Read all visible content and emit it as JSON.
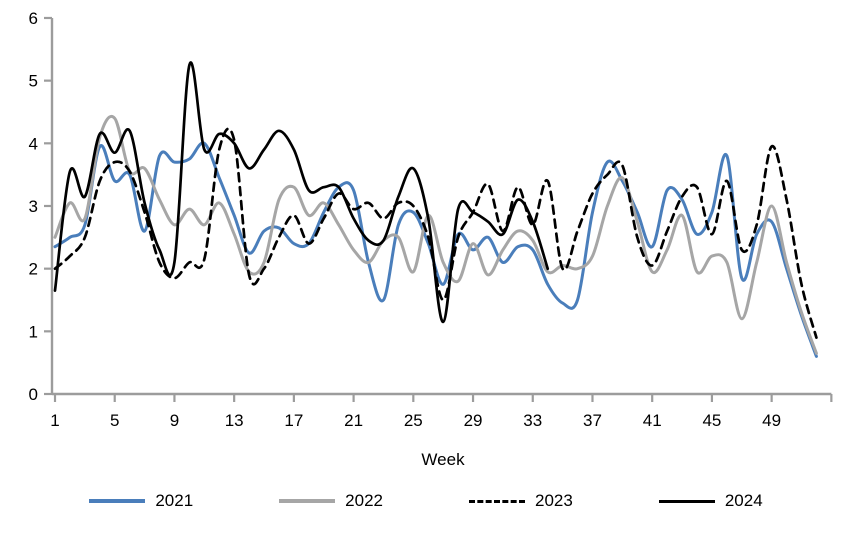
{
  "chart_data": {
    "type": "line",
    "title": "",
    "xlabel": "Week",
    "ylabel": "",
    "ylim": [
      0,
      6
    ],
    "y_ticks": [
      0,
      1,
      2,
      3,
      4,
      5,
      6
    ],
    "x_ticks": [
      1,
      5,
      9,
      13,
      17,
      21,
      25,
      29,
      33,
      37,
      41,
      45,
      49
    ],
    "x_axis_end_week": 53,
    "grid": false,
    "legend_position": "bottom",
    "axis_color": "#9c9c9c",
    "tick_label_color": "#000000",
    "series": [
      {
        "name": "2021",
        "color": "#4a7ebb",
        "style": "solid",
        "start_week": 1,
        "values": [
          2.35,
          2.5,
          2.7,
          3.95,
          3.4,
          3.5,
          2.6,
          3.8,
          3.7,
          3.75,
          4.0,
          3.45,
          2.85,
          2.25,
          2.6,
          2.65,
          2.4,
          2.4,
          2.9,
          3.3,
          3.25,
          2.1,
          1.5,
          2.7,
          2.9,
          2.4,
          1.75,
          2.55,
          2.3,
          2.5,
          2.1,
          2.35,
          2.3,
          1.75,
          1.45,
          1.5,
          2.9,
          3.7,
          3.4,
          2.9,
          2.35,
          3.25,
          3.1,
          2.55,
          2.9,
          3.8,
          1.85,
          2.55,
          2.75,
          2.0,
          1.25,
          0.6
        ]
      },
      {
        "name": "2022",
        "color": "#a6a6a6",
        "style": "solid",
        "start_week": 1,
        "values": [
          2.5,
          3.05,
          2.8,
          4.1,
          4.4,
          3.55,
          3.6,
          3.1,
          2.7,
          2.95,
          2.7,
          3.05,
          2.55,
          1.95,
          2.1,
          3.1,
          3.3,
          2.85,
          3.05,
          2.7,
          2.3,
          2.1,
          2.45,
          2.5,
          1.95,
          2.85,
          2.1,
          1.8,
          2.4,
          1.9,
          2.3,
          2.6,
          2.45,
          1.95,
          2.05,
          2.0,
          2.2,
          3.0,
          3.45,
          2.75,
          1.95,
          2.3,
          2.85,
          1.95,
          2.2,
          2.1,
          1.2,
          2.1,
          3.0,
          2.1,
          1.3,
          0.65
        ]
      },
      {
        "name": "2023",
        "color": "#000000",
        "style": "dashed",
        "start_week": 1,
        "values": [
          2.0,
          2.2,
          2.5,
          3.4,
          3.7,
          3.55,
          2.9,
          2.1,
          1.85,
          2.1,
          2.15,
          3.9,
          4.05,
          1.9,
          2.0,
          2.5,
          2.85,
          2.4,
          2.8,
          3.2,
          2.95,
          3.05,
          2.8,
          3.05,
          3.0,
          2.5,
          1.5,
          2.5,
          2.9,
          3.35,
          2.6,
          3.3,
          2.7,
          3.4,
          2.0,
          2.6,
          3.2,
          3.5,
          3.65,
          2.5,
          2.05,
          2.6,
          3.15,
          3.3,
          2.55,
          3.4,
          2.3,
          2.7,
          3.95,
          3.1,
          1.75,
          0.9
        ]
      },
      {
        "name": "2024",
        "color": "#000000",
        "style": "solid",
        "start_week": 1,
        "values": [
          1.65,
          3.55,
          3.15,
          4.15,
          3.85,
          4.2,
          3.05,
          2.3,
          2.1,
          5.25,
          3.9,
          4.15,
          4.0,
          3.6,
          3.9,
          4.2,
          3.9,
          3.25,
          3.3,
          3.3,
          2.8,
          2.45,
          2.45,
          3.15,
          3.6,
          2.8,
          1.15,
          2.95,
          2.9,
          2.75,
          2.55,
          3.1,
          2.75,
          2.0
        ]
      }
    ]
  }
}
